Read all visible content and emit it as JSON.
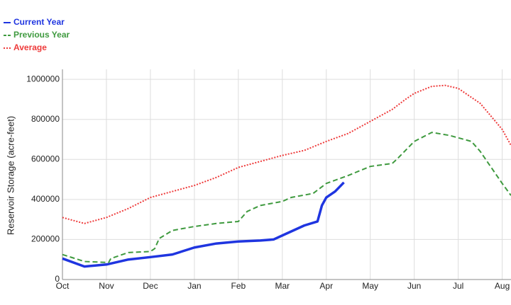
{
  "chart_data": {
    "type": "line",
    "y_label": "Reservoir Storage (acre-feet)",
    "xlim": [
      0,
      10.2
    ],
    "xticks": [
      {
        "value": 0,
        "label": "Oct"
      },
      {
        "value": 1,
        "label": "Nov"
      },
      {
        "value": 2,
        "label": "Dec"
      },
      {
        "value": 3,
        "label": "Jan"
      },
      {
        "value": 4,
        "label": "Feb"
      },
      {
        "value": 5,
        "label": "Mar"
      },
      {
        "value": 6,
        "label": "Apr"
      },
      {
        "value": 7,
        "label": "May"
      },
      {
        "value": 8,
        "label": "Jun"
      },
      {
        "value": 9,
        "label": "Jul"
      },
      {
        "value": 10,
        "label": "Aug"
      }
    ],
    "ylim": [
      0,
      1050000
    ],
    "yticks": [
      0,
      200000,
      400000,
      600000,
      800000,
      1000000
    ],
    "grid": true,
    "legend": "top-left",
    "series": [
      {
        "name": "Current Year",
        "color": "#1f35e0",
        "style": "solid",
        "x": [
          0,
          0.5,
          1,
          1.5,
          2,
          2.5,
          3,
          3.5,
          4,
          4.5,
          4.8,
          5,
          5.5,
          5.8,
          5.9,
          6,
          6.2,
          6.4
        ],
        "values": [
          105000,
          65000,
          75000,
          100000,
          112000,
          125000,
          160000,
          180000,
          190000,
          195000,
          200000,
          220000,
          270000,
          290000,
          370000,
          410000,
          440000,
          485000
        ]
      },
      {
        "name": "Previous Year",
        "color": "#3f9a3f",
        "style": "dashed",
        "x": [
          0,
          0.5,
          1.05,
          1.1,
          1.5,
          2,
          2.1,
          2.2,
          2.5,
          3,
          3.5,
          4,
          4.2,
          4.5,
          5,
          5.2,
          5.7,
          6,
          6.5,
          7,
          7.5,
          7.6,
          8,
          8.4,
          8.8,
          9.3,
          9.5,
          10,
          10.2
        ],
        "values": [
          125000,
          90000,
          85000,
          105000,
          135000,
          140000,
          155000,
          205000,
          245000,
          265000,
          280000,
          290000,
          340000,
          370000,
          390000,
          410000,
          430000,
          480000,
          520000,
          565000,
          580000,
          600000,
          690000,
          735000,
          720000,
          690000,
          640000,
          480000,
          420000
        ]
      },
      {
        "name": "Average",
        "color": "#ee3b3b",
        "style": "dotted",
        "x": [
          0,
          0.5,
          1,
          1.5,
          2,
          2.5,
          3,
          3.5,
          4,
          4.5,
          5,
          5.5,
          6,
          6.5,
          7,
          7.5,
          7.8,
          8,
          8.4,
          8.7,
          9,
          9.5,
          10,
          10.2
        ],
        "values": [
          310000,
          280000,
          310000,
          355000,
          410000,
          440000,
          470000,
          510000,
          560000,
          590000,
          620000,
          645000,
          690000,
          730000,
          790000,
          850000,
          900000,
          930000,
          965000,
          970000,
          955000,
          880000,
          750000,
          670000
        ]
      }
    ]
  }
}
